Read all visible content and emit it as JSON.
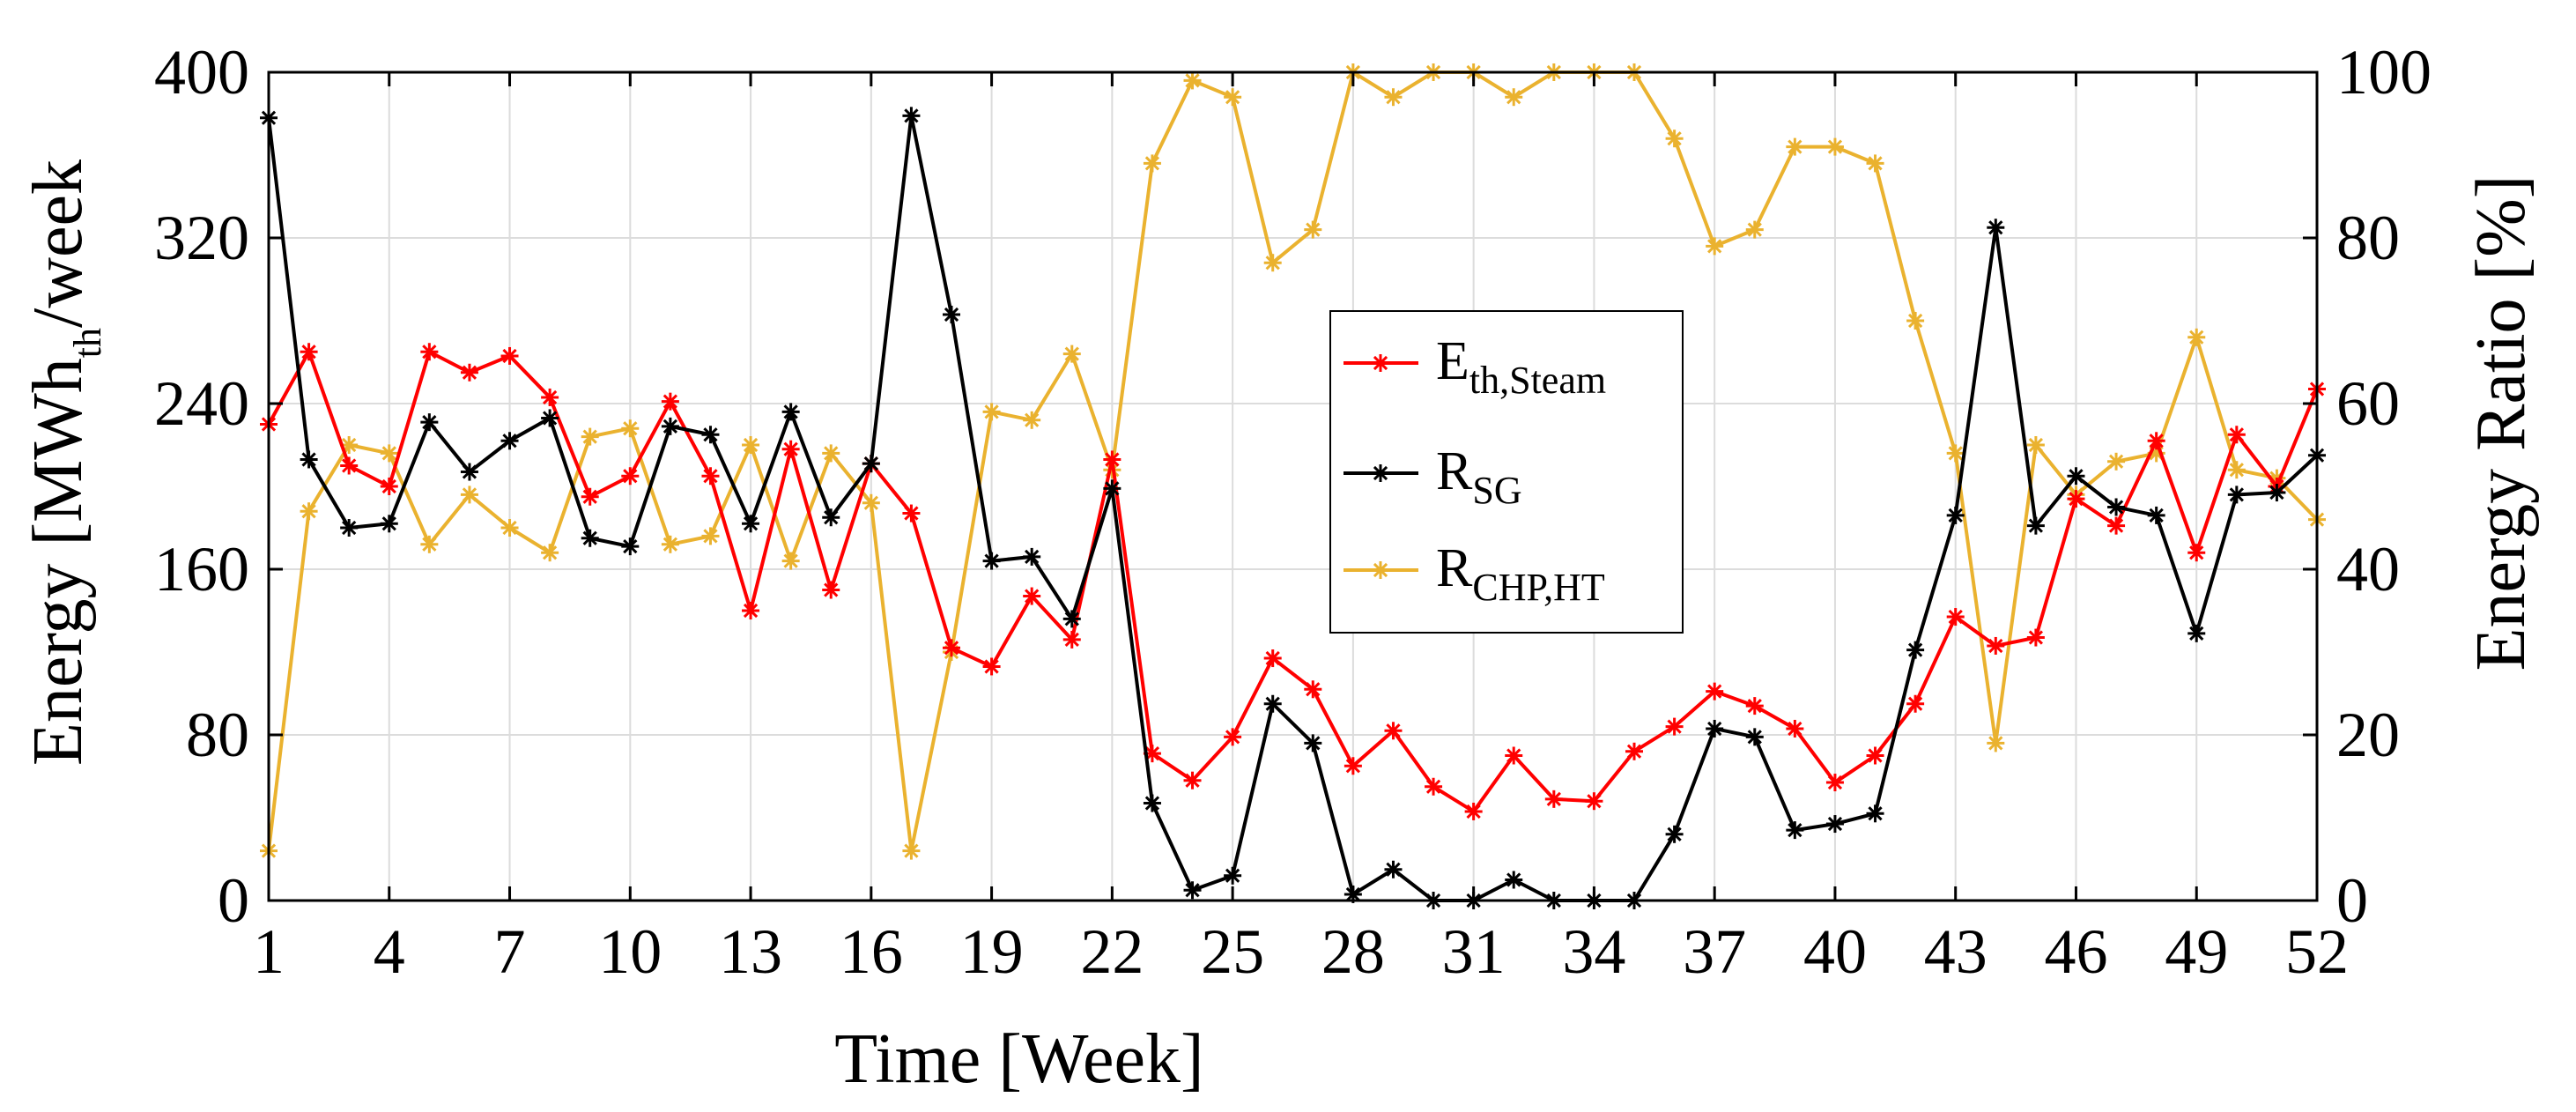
{
  "chart_data": {
    "type": "line",
    "xlabel": "Time [Week]",
    "ylabel_left": {
      "main": "Energy [MWh",
      "sub1": "th",
      "mid": "/week",
      "sub2": ""
    },
    "ylabel_right": "Energy Ratio [%]",
    "xlim": [
      1,
      52
    ],
    "ylim_left": [
      0,
      400
    ],
    "ylim_right": [
      0,
      100
    ],
    "grid": true,
    "legend_position": "center",
    "x_ticks": [
      1,
      4,
      7,
      10,
      13,
      16,
      19,
      22,
      25,
      28,
      31,
      34,
      37,
      40,
      43,
      46,
      49,
      52
    ],
    "y_left_ticks": [
      0,
      80,
      160,
      240,
      320,
      400
    ],
    "y_right_ticks": [
      0,
      20,
      40,
      60,
      80,
      100
    ],
    "x": [
      1,
      2,
      3,
      4,
      5,
      6,
      7,
      8,
      9,
      10,
      11,
      12,
      13,
      14,
      15,
      16,
      17,
      18,
      19,
      20,
      21,
      22,
      23,
      24,
      25,
      26,
      27,
      28,
      29,
      30,
      31,
      32,
      33,
      34,
      35,
      36,
      37,
      38,
      39,
      40,
      41,
      42,
      43,
      44,
      45,
      46,
      47,
      48,
      49,
      50,
      51,
      52
    ],
    "series": [
      {
        "name": "E_th,Steam",
        "label_main": "E",
        "label_sub": "th,Steam",
        "axis": "left",
        "color": "#ff0000",
        "values": [
          230,
          265,
          210,
          200,
          265,
          255,
          263,
          243,
          195,
          205,
          241,
          205,
          140,
          218,
          150,
          211,
          187,
          122,
          113,
          147,
          126,
          213,
          71,
          58,
          79,
          117,
          102,
          65,
          82,
          55,
          43,
          70,
          49,
          48,
          72,
          84,
          101,
          94,
          83,
          57,
          70,
          95,
          137,
          123,
          127,
          194,
          181,
          222,
          168,
          225,
          200,
          247
        ]
      },
      {
        "name": "R_SG",
        "label_main": "R",
        "label_sub": "SG",
        "axis": "left",
        "color": "#000000",
        "values": [
          378,
          213,
          180,
          182,
          231,
          207,
          222,
          233,
          175,
          171,
          229,
          225,
          182,
          236,
          185,
          211,
          379,
          283,
          164,
          166,
          136,
          199,
          47,
          5,
          12,
          95,
          76,
          3,
          15,
          0,
          0,
          10,
          0,
          0,
          0,
          32,
          83,
          79,
          34,
          37,
          42,
          121,
          186,
          325,
          181,
          205,
          190,
          186,
          129,
          196,
          197,
          215
        ]
      },
      {
        "name": "R_CHP,HT",
        "label_main": "R",
        "label_sub": "CHP,HT",
        "axis": "right",
        "color": "#eab22f",
        "values": [
          6,
          47,
          55,
          54,
          43,
          49,
          45,
          42,
          56,
          57,
          43,
          44,
          55,
          41,
          54,
          48,
          6,
          30,
          59,
          58,
          66,
          52,
          89,
          99,
          97,
          77,
          81,
          100,
          97,
          100,
          100,
          97,
          100,
          100,
          100,
          92,
          79,
          81,
          91,
          91,
          89,
          70,
          54,
          19,
          55,
          49,
          53,
          54,
          68,
          52,
          51,
          46
        ]
      }
    ]
  }
}
